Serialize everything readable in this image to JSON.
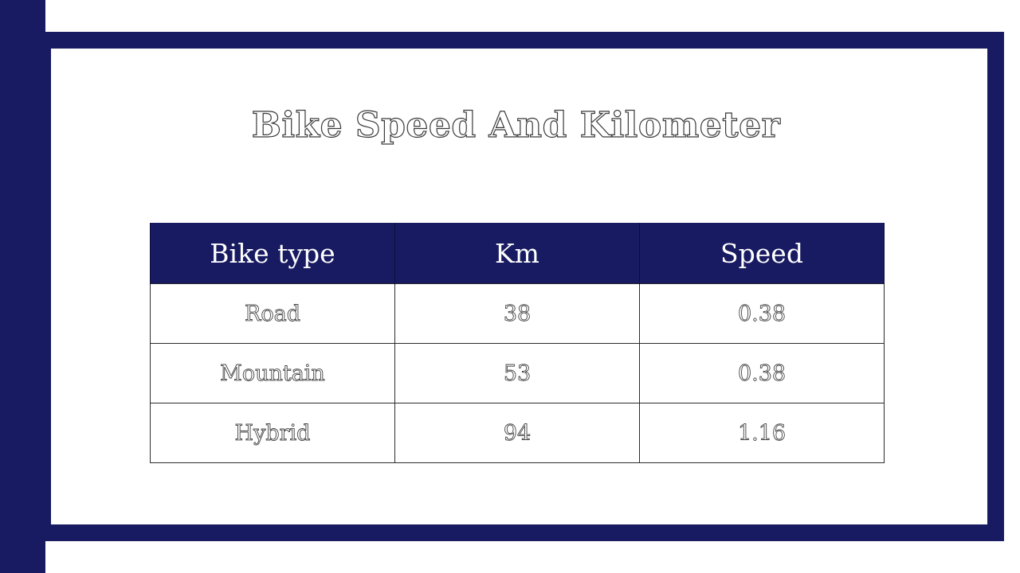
{
  "colors": {
    "accent": "#181b61",
    "background": "#ffffff"
  },
  "slide": {
    "title": "Bike Speed And Kilometer"
  },
  "table": {
    "headers": [
      "Bike type",
      "Km",
      "Speed"
    ],
    "rows": [
      [
        "Road",
        "38",
        "0.38"
      ],
      [
        "Mountain",
        "53",
        "0.38"
      ],
      [
        "Hybrid",
        "94",
        "1.16"
      ]
    ]
  }
}
